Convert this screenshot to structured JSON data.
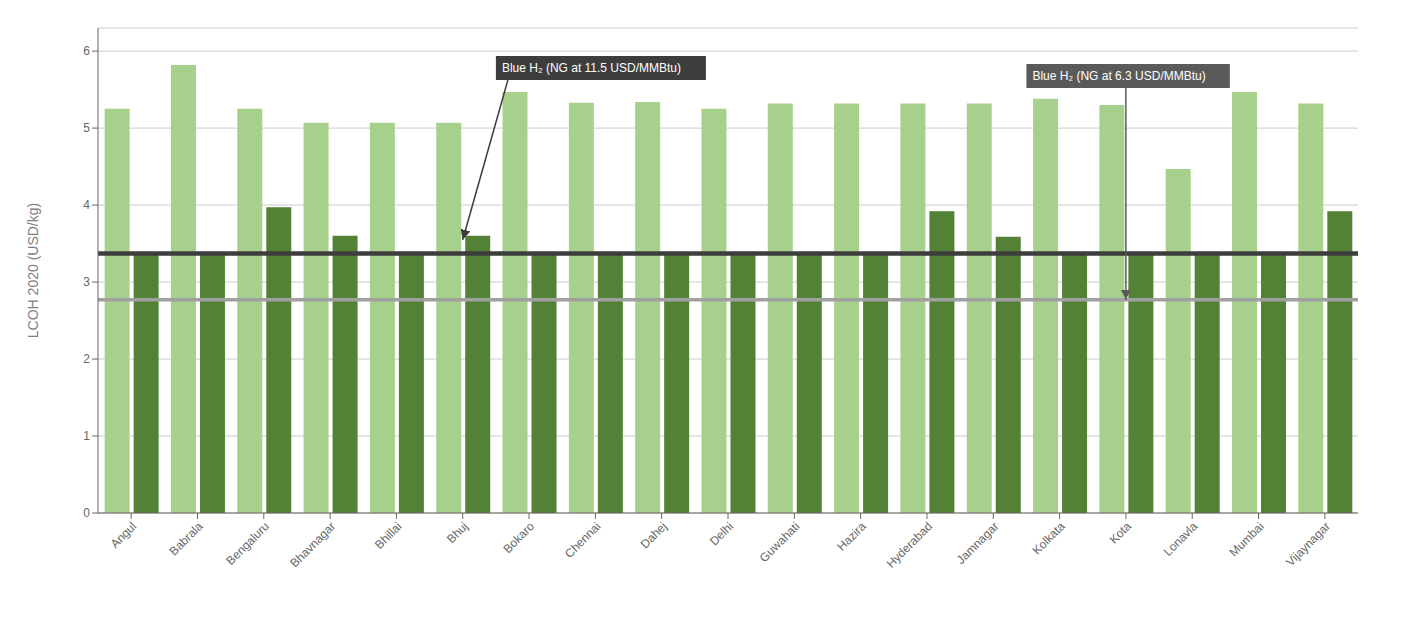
{
  "chart_data": {
    "type": "bar",
    "ylabel": "LCOH 2020 (USD/kg)",
    "categories": [
      "Angul",
      "Babrala",
      "Bengaluru",
      "Bhavnagar",
      "Bhillai",
      "Bhuj",
      "Bokaro",
      "Chennai",
      "Dahej",
      "Delhi",
      "Guwahati",
      "Hazira",
      "Hyderabad",
      "Jamnagar",
      "Kolkata",
      "Kota",
      "Lonavla",
      "Mumbai",
      "Vijaynagar"
    ],
    "series": [
      {
        "color": "#a8d08d",
        "values": [
          5.25,
          5.82,
          5.25,
          5.07,
          5.07,
          5.07,
          5.47,
          5.33,
          5.34,
          5.25,
          5.32,
          5.32,
          5.32,
          5.32,
          5.38,
          5.3,
          4.47,
          5.47,
          5.32
        ]
      },
      {
        "color": "#538135",
        "values": [
          3.37,
          3.37,
          3.97,
          3.6,
          3.37,
          3.6,
          3.37,
          3.37,
          3.37,
          3.37,
          3.37,
          3.37,
          3.92,
          3.59,
          3.37,
          3.37,
          3.37,
          3.37,
          3.92
        ]
      }
    ],
    "ylim": [
      0.0,
      6.3
    ],
    "yticks": [
      0,
      1,
      2,
      3,
      4,
      5,
      6
    ],
    "grid": true,
    "reference_lines": [
      {
        "y": 3.37,
        "color": "#3d3d3d"
      },
      {
        "y": 2.77,
        "color": "#a0a0a0"
      }
    ],
    "annotations": [
      {
        "text": "Blue H₂ (NG at 11.5 USD/MMBtu)",
        "x": "Bhuj",
        "y": 3.55,
        "color": "#3d3d3d"
      },
      {
        "text": "Blue H₂ (NG at 6.3 USD/MMBtu)",
        "x": "Kota",
        "y": 2.77,
        "color": "#5a5a5a"
      }
    ]
  }
}
